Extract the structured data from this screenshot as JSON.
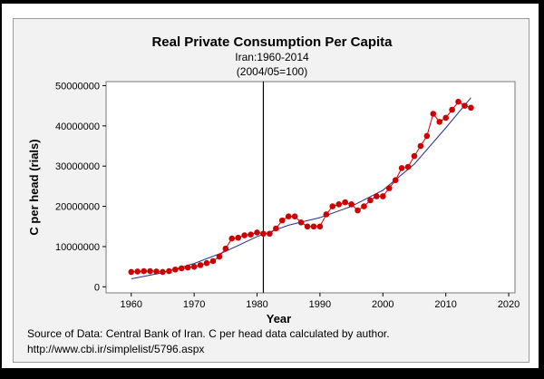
{
  "chart_data": {
    "type": "scatter",
    "title": "Real  Private Consumption Per Capita",
    "subtitle_lines": [
      "Iran:1960-2014",
      "(2004/05=100)"
    ],
    "xlabel": "Year",
    "ylabel": "C per head (rials)",
    "xlim": [
      1956,
      2021
    ],
    "ylim": [
      -1500000,
      51000000
    ],
    "xticks": [
      1960,
      1970,
      1980,
      1990,
      2000,
      2010,
      2020
    ],
    "yticks": [
      0,
      10000000,
      20000000,
      30000000,
      40000000,
      50000000
    ],
    "ytick_labels": [
      "0",
      "10000000",
      "20000000",
      "30000000",
      "40000000",
      "50000000"
    ],
    "vertical_line_x": 1981,
    "series": [
      {
        "name": "C per head",
        "color": "#cc0000",
        "x": [
          1960,
          1961,
          1962,
          1963,
          1964,
          1965,
          1966,
          1967,
          1968,
          1969,
          1970,
          1971,
          1972,
          1973,
          1974,
          1975,
          1976,
          1977,
          1978,
          1979,
          1980,
          1981,
          1982,
          1983,
          1984,
          1985,
          1986,
          1987,
          1988,
          1989,
          1990,
          1991,
          1992,
          1993,
          1994,
          1995,
          1996,
          1997,
          1998,
          1999,
          2000,
          2001,
          2002,
          2003,
          2004,
          2005,
          2006,
          2007,
          2008,
          2009,
          2010,
          2011,
          2012,
          2013,
          2014
        ],
        "y": [
          3700000,
          3800000,
          3900000,
          3900000,
          3800000,
          3700000,
          3900000,
          4300000,
          4600000,
          4800000,
          5000000,
          5400000,
          5900000,
          6400000,
          7500000,
          9500000,
          12000000,
          12200000,
          12800000,
          13000000,
          13500000,
          13200000,
          13200000,
          14500000,
          16500000,
          17500000,
          17500000,
          16000000,
          15000000,
          15000000,
          15000000,
          18000000,
          20000000,
          20500000,
          21000000,
          20500000,
          19000000,
          20000000,
          21500000,
          22500000,
          22500000,
          24500000,
          26500000,
          29500000,
          29800000,
          32500000,
          35000000,
          37500000,
          43000000,
          41000000,
          42000000,
          44000000,
          46000000,
          45000000,
          44500000
        ]
      }
    ],
    "fit_line": {
      "name": "trend",
      "color": "#2b2b8c",
      "x": [
        1960,
        1965,
        1970,
        1975,
        1980,
        1985,
        1990,
        1995,
        2000,
        2005,
        2010,
        2014
      ],
      "y": [
        2000000,
        3500000,
        5800000,
        8800000,
        12500000,
        15300000,
        17200000,
        20000000,
        24000000,
        30500000,
        39500000,
        47000000
      ]
    }
  },
  "source": {
    "line1": "Source of Data: Central Bank of Iran. C per head data calculated by author.",
    "line2": "http://www.cbi.ir/simplelist/5796.aspx"
  }
}
